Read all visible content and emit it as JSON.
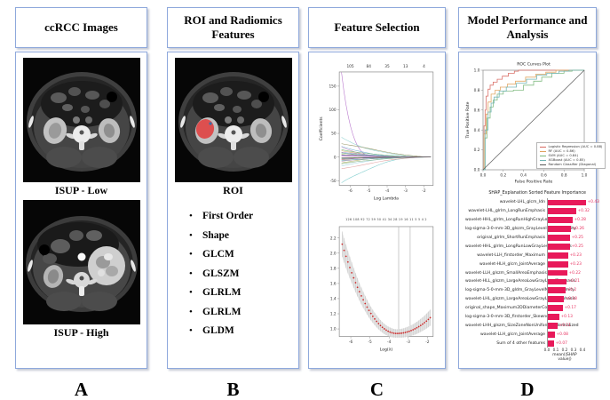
{
  "colors": {
    "panel_border": "#8FA9DC",
    "shap_bar": "#E8195A",
    "cv_point": "#CC2A2A",
    "roi_overlay": "#E23B3B"
  },
  "panels": {
    "a": {
      "header": "ccRCC Images",
      "label_low": "ISUP - Low",
      "label_high": "ISUP - High",
      "letter": "A"
    },
    "b": {
      "header": "ROI and Radiomics Features",
      "roi_label": "ROI",
      "features": [
        "First Order",
        "Shape",
        "GLCM",
        "GLSZM",
        "GLRLM",
        "GLRLM",
        "GLDM"
      ],
      "letter": "B"
    },
    "c": {
      "header": "Feature Selection",
      "letter": "C"
    },
    "d": {
      "header": "Model Performance and Analysis",
      "letter": "D"
    }
  },
  "chart_data": [
    {
      "id": "lasso-coefficient-paths",
      "type": "line",
      "xlabel": "Log Lambda",
      "ylabel": "Coefficients",
      "x_tick_labels": [
        "-6",
        "-5",
        "-4",
        "-3",
        "-2"
      ],
      "y_tick_labels": [
        "150",
        "100",
        "50",
        "0",
        "-50"
      ],
      "top_axis_feature_counts": [
        "105",
        "84",
        "35",
        "13",
        "4"
      ],
      "xlim": [
        -6.6,
        -1.5
      ],
      "ylim": [
        -60,
        180
      ],
      "lines": [
        {
          "color": "#b26bc9",
          "start": 172,
          "decay": 9
        },
        {
          "color": "#8fd0cf",
          "start": 40,
          "decay": 2.2
        },
        {
          "color": "#8b8b55",
          "start": 30,
          "decay": 1.5
        },
        {
          "color": "#6fa8d6",
          "start": 24,
          "decay": 3.2
        },
        {
          "color": "#c98fb5",
          "start": 20,
          "decay": 4
        },
        {
          "color": "#74b874",
          "start": 16,
          "decay": 2.1
        },
        {
          "color": "#d4a25e",
          "start": 13,
          "decay": 3
        },
        {
          "color": "#8f8fd6",
          "start": 11,
          "decay": 2.4
        },
        {
          "color": "#bc7474",
          "start": 9,
          "decay": 3.4
        },
        {
          "color": "#5fc4a3",
          "start": 8,
          "decay": 1.9
        },
        {
          "color": "#c9c95e",
          "start": 6,
          "decay": 4.2
        },
        {
          "color": "#8a62c9",
          "start": 5,
          "decay": 2
        },
        {
          "color": "#62a8c9",
          "start": 4,
          "decay": 2.8
        },
        {
          "color": "#c962a8",
          "start": 3,
          "decay": 2.2
        },
        {
          "color": "#74c9c9",
          "start": -58,
          "decay": 2.4
        },
        {
          "color": "#e09a9a",
          "start": -26,
          "decay": 1.8
        },
        {
          "color": "#9ad0e0",
          "start": -20,
          "decay": 2.6
        },
        {
          "color": "#80b080",
          "start": -15,
          "decay": 2.1
        },
        {
          "color": "#b0b060",
          "start": -12,
          "decay": 3
        },
        {
          "color": "#b080b0",
          "start": -9,
          "decay": 2.3
        },
        {
          "color": "#60b0b0",
          "start": -7,
          "decay": 1.7
        },
        {
          "color": "#d06060",
          "start": -5,
          "decay": 2.9
        },
        {
          "color": "#6060d0",
          "start": -4,
          "decay": 2
        },
        {
          "color": "#a0d060",
          "start": -3,
          "decay": 2.5
        },
        {
          "color": "#d0a0d0",
          "start": 2,
          "decay": 2.2
        },
        {
          "color": "#404040",
          "start": -2,
          "decay": 1.8
        }
      ]
    },
    {
      "id": "lasso-cv-curve",
      "type": "scatter",
      "xlabel": "Log(λ)",
      "x_tick_labels": [
        "-6",
        "-5",
        "-4",
        "-3",
        "-2"
      ],
      "y_tick_labels": [
        "2.2",
        "2.0",
        "1.8",
        "1.6",
        "1.4",
        "1.2",
        "1.0"
      ],
      "top_axis_feature_counts": "126 108 92 72 59 50 41 34 28 19 16 11 5 5 4 2",
      "curve": {
        "x_start": -6.45,
        "x_end": -1.8,
        "x_min": -3.6,
        "y_min": 0.94,
        "left_a": 0.145,
        "right_a": 0.068
      },
      "vline_x": [
        -3.5,
        -2.9
      ],
      "point_color": "#CC2A2A"
    },
    {
      "id": "roc-curves",
      "type": "line",
      "title": "ROC Curves Plot",
      "xlabel": "False Positive Rate",
      "ylabel": "True Positive Rate",
      "x_tick_labels": [
        "0.0",
        "0.2",
        "0.4",
        "0.6",
        "0.8",
        "1.0"
      ],
      "y_tick_labels": [
        "0.0",
        "0.2",
        "0.4",
        "0.6",
        "0.8",
        "1.0"
      ],
      "legend_position": "bottom-right",
      "series": [
        {
          "name": "Logistic Regression (AUC = 0.88)",
          "color": "#d96a62",
          "points": [
            [
              0,
              0
            ],
            [
              0.01,
              0.44
            ],
            [
              0.02,
              0.6
            ],
            [
              0.03,
              0.74
            ],
            [
              0.05,
              0.81
            ],
            [
              0.07,
              0.85
            ],
            [
              0.1,
              0.88
            ],
            [
              0.14,
              0.91
            ],
            [
              0.19,
              0.94
            ],
            [
              0.25,
              0.97
            ],
            [
              0.31,
              0.99
            ],
            [
              0.35,
              1.0
            ],
            [
              1,
              1
            ]
          ]
        },
        {
          "name": "RF (AUC = 0.86)",
          "color": "#e0a35e",
          "points": [
            [
              0,
              0
            ],
            [
              0.01,
              0.36
            ],
            [
              0.03,
              0.56
            ],
            [
              0.05,
              0.68
            ],
            [
              0.08,
              0.76
            ],
            [
              0.12,
              0.8
            ],
            [
              0.17,
              0.83
            ],
            [
              0.24,
              0.86
            ],
            [
              0.32,
              0.89
            ],
            [
              0.42,
              0.93
            ],
            [
              0.52,
              0.96
            ],
            [
              0.62,
              0.98
            ],
            [
              0.72,
              1.0
            ],
            [
              1,
              1
            ]
          ]
        },
        {
          "name": "SVM (AUC = 0.84)",
          "color": "#7db87d",
          "points": [
            [
              0,
              0
            ],
            [
              0.02,
              0.32
            ],
            [
              0.04,
              0.52
            ],
            [
              0.07,
              0.63
            ],
            [
              0.1,
              0.7
            ],
            [
              0.14,
              0.76
            ],
            [
              0.2,
              0.79
            ],
            [
              0.3,
              0.8
            ],
            [
              0.4,
              0.85
            ],
            [
              0.5,
              0.89
            ],
            [
              0.58,
              0.93
            ],
            [
              0.68,
              0.97
            ],
            [
              0.8,
              0.99
            ],
            [
              0.88,
              1.0
            ],
            [
              1,
              1
            ]
          ]
        },
        {
          "name": "XGBoost (AUC = 0.85)",
          "color": "#6fb3b3",
          "points": [
            [
              0,
              0
            ],
            [
              0.02,
              0.4
            ],
            [
              0.05,
              0.58
            ],
            [
              0.08,
              0.67
            ],
            [
              0.11,
              0.73
            ],
            [
              0.16,
              0.79
            ],
            [
              0.23,
              0.83
            ],
            [
              0.33,
              0.87
            ],
            [
              0.43,
              0.91
            ],
            [
              0.53,
              0.95
            ],
            [
              0.63,
              0.97
            ],
            [
              0.75,
              0.99
            ],
            [
              0.85,
              1.0
            ],
            [
              1,
              1
            ]
          ]
        },
        {
          "name": "Random Classifier (Diagonal)",
          "color": "#5a5a5a",
          "diagonal": true,
          "points": [
            [
              0,
              0
            ],
            [
              1,
              1
            ]
          ]
        }
      ]
    },
    {
      "id": "shap-feature-importance",
      "type": "bar",
      "title": "SHAP_Explanation Sorted Feature Importance",
      "xlabel": "mean(|SHAP value|)",
      "x_tick_labels": [
        "0.0",
        "0.1",
        "0.2",
        "0.3",
        "0.4"
      ],
      "bar_color": "#E8195A",
      "bars": [
        {
          "label": "wavelet-LHL_glcm_Idn",
          "value": 0.43,
          "value_label": "+0.43"
        },
        {
          "label": "wavelet-LHL_glrlm_LongRunEmphasis",
          "value": 0.32,
          "value_label": "+0.32"
        },
        {
          "label": "wavelet-HHL_glrlm_LongRunHighGrayLevelEmphasis",
          "value": 0.28,
          "value_label": "+0.28"
        },
        {
          "label": "log-sigma-3-0-mm-3D_glszm_GrayLevelNonUniformity",
          "value": 0.26,
          "value_label": "+0.26"
        },
        {
          "label": "original_glrlm_ShortRunEmphasis",
          "value": 0.25,
          "value_label": "+0.25"
        },
        {
          "label": "wavelet-HHL_glrlm_LongRunLowGrayLevelEmphasis",
          "value": 0.25,
          "value_label": "+0.25"
        },
        {
          "label": "wavelet-LLH_firstorder_Maximum",
          "value": 0.23,
          "value_label": "+0.23"
        },
        {
          "label": "wavelet-HLH_glcm_JointAverage",
          "value": 0.23,
          "value_label": "+0.23"
        },
        {
          "label": "wavelet-LLH_glszm_SmallAreaEmphasis",
          "value": 0.22,
          "value_label": "+0.22"
        },
        {
          "label": "wavelet-HLL_glszm_LargeAreaLowGrayLevelEmphasis",
          "value": 0.21,
          "value_label": "+0.21"
        },
        {
          "label": "log-sigma-5-0-mm-3D_gldm_GrayLevelNonUniformity",
          "value": 0.2,
          "value_label": "+0.2"
        },
        {
          "label": "wavelet-LHL_glszm_LargeAreaLowGrayLevelEmphasis",
          "value": 0.18,
          "value_label": "+0.18"
        },
        {
          "label": "original_shape_Maximum2DDiameterColumn",
          "value": 0.17,
          "value_label": "+0.17"
        },
        {
          "label": "log-sigma-3-0-mm-3D_firstorder_Skewness",
          "value": 0.13,
          "value_label": "+0.13"
        },
        {
          "label": "wavelet-LHH_glszm_SizeZoneNonUniformityNormalized",
          "value": 0.11,
          "value_label": "+0.11"
        },
        {
          "label": "wavelet-LLH_glcm_JointAverage",
          "value": 0.08,
          "value_label": "+0.08"
        },
        {
          "label": "Sum of 4 other features",
          "value": 0.07,
          "value_label": "+0.07"
        }
      ]
    }
  ]
}
